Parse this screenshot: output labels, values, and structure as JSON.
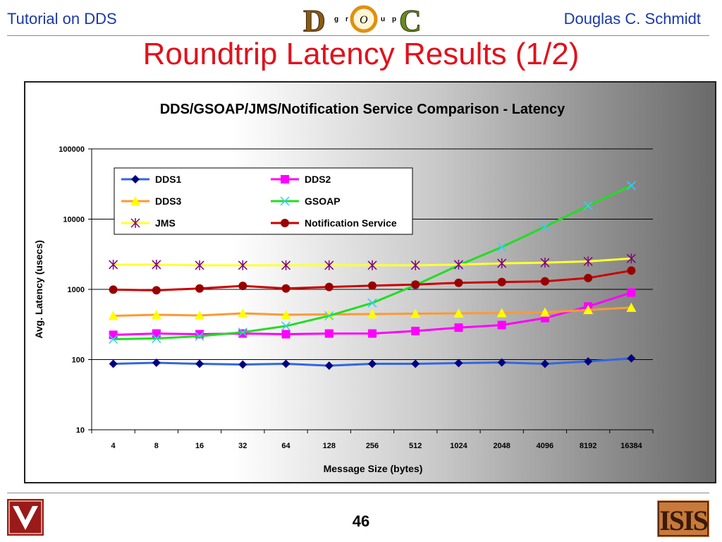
{
  "header": {
    "left": "Tutorial on DDS",
    "right": "Douglas C. Schmidt",
    "logo_letters": [
      "D",
      "g",
      "r",
      "O",
      "u",
      "p",
      "C"
    ]
  },
  "slide_title": "Roundtrip Latency Results (1/2)",
  "page_number": "46",
  "footer": {
    "right_logo_text": "ISIS"
  },
  "chart_data": {
    "type": "line",
    "title": "DDS/GSOAP/JMS/Notification Service Comparison - Latency",
    "xlabel": "Message Size (bytes)",
    "ylabel": "Avg. Latency (usecs)",
    "yscale": "log",
    "ylim": [
      10,
      100000
    ],
    "yticks": [
      "10",
      "100",
      "1000",
      "10000",
      "100000"
    ],
    "grid": "horizontal major",
    "legend_position": "top-left inside plot",
    "categories": [
      "4",
      "8",
      "16",
      "32",
      "64",
      "128",
      "256",
      "512",
      "1024",
      "2048",
      "4096",
      "8192",
      "16384"
    ],
    "series": [
      {
        "name": "DDS1",
        "color": "#3366e0",
        "marker": "diamond",
        "marker_color": "#000080",
        "values": [
          87,
          90,
          87,
          85,
          87,
          82,
          87,
          87,
          89,
          91,
          87,
          94,
          104
        ]
      },
      {
        "name": "DDS2",
        "color": "#ff00ff",
        "marker": "square",
        "marker_color": "#ff00ff",
        "values": [
          225,
          235,
          230,
          235,
          230,
          235,
          235,
          255,
          285,
          310,
          390,
          570,
          900
        ]
      },
      {
        "name": "DDS3",
        "color": "#ff9933",
        "marker": "triangle",
        "marker_color": "#ffff00",
        "values": [
          420,
          435,
          425,
          455,
          435,
          440,
          445,
          450,
          455,
          460,
          470,
          510,
          550
        ]
      },
      {
        "name": "GSOAP",
        "color": "#22dd22",
        "marker": "x",
        "marker_color": "#33ccff",
        "values": [
          195,
          200,
          215,
          245,
          300,
          420,
          640,
          1150,
          2200,
          4000,
          7800,
          15500,
          30000
        ]
      },
      {
        "name": "JMS",
        "color": "#ffff33",
        "marker": "asterisk",
        "marker_color": "#800080",
        "values": [
          2250,
          2250,
          2200,
          2200,
          2200,
          2200,
          2200,
          2200,
          2250,
          2350,
          2400,
          2500,
          2750
        ]
      },
      {
        "name": "Notification Service",
        "color": "#cc0000",
        "marker": "circle",
        "marker_color": "#990000",
        "values": [
          990,
          970,
          1030,
          1120,
          1030,
          1080,
          1130,
          1170,
          1240,
          1270,
          1300,
          1450,
          1850
        ]
      }
    ]
  }
}
